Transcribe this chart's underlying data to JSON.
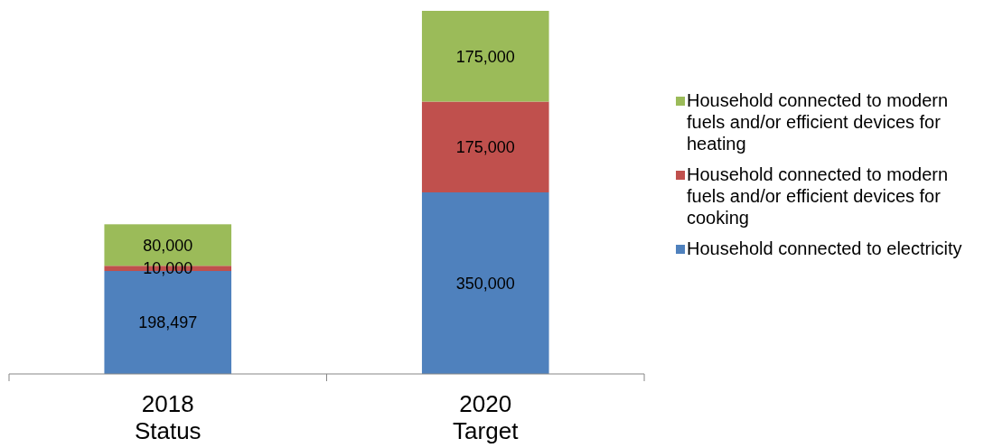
{
  "chart_data": {
    "type": "bar",
    "stacked": true,
    "legend": "right",
    "categories": [
      "2018\nStatus",
      "2020\nTarget"
    ],
    "series": [
      {
        "name": "Household connected to electricity",
        "color": "#4f81bd",
        "values": [
          198497,
          350000
        ],
        "value_labels": [
          "198,497",
          "350,000"
        ]
      },
      {
        "name": "Household connected to modern fuels and/or efficient devices for cooking",
        "color": "#c0504d",
        "values": [
          10000,
          175000
        ],
        "value_labels": [
          "10,000",
          "175,000"
        ]
      },
      {
        "name": "Household connected to modern fuels and/or efficient devices for heating",
        "color": "#9bbb59",
        "values": [
          80000,
          175000
        ],
        "value_labels": [
          "80,000",
          "175,000"
        ]
      }
    ]
  }
}
